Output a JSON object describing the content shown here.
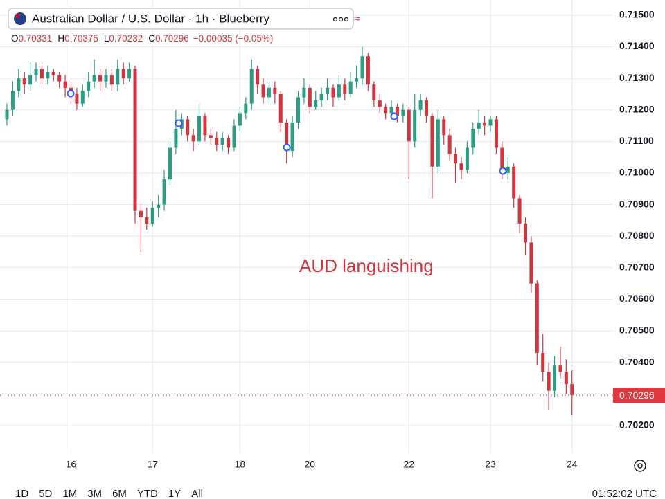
{
  "chart_data": {
    "type": "candlestick",
    "title": "Australian Dollar / U.S. Dollar · 1h · Blueberry",
    "ohlc_labels": [
      "O",
      "H",
      "L",
      "C"
    ],
    "change": "−0.00035 (−0.05%)",
    "annotation": "AUD languishing",
    "up_color": "#2a9d82",
    "down_color": "#d1353f",
    "grid": true,
    "ylim": [
      0.70112,
      0.71548
    ],
    "yticks": [
      {
        "value": 0.702,
        "label": "0.70200"
      },
      {
        "value": 0.703,
        "label": "0.70300"
      },
      {
        "value": 0.704,
        "label": "0.70400"
      },
      {
        "value": 0.705,
        "label": "0.70500"
      },
      {
        "value": 0.706,
        "label": "0.70600"
      },
      {
        "value": 0.707,
        "label": "0.70700"
      },
      {
        "value": 0.708,
        "label": "0.70800"
      },
      {
        "value": 0.709,
        "label": "0.70900"
      },
      {
        "value": 0.71,
        "label": "0.71000"
      },
      {
        "value": 0.711,
        "label": "0.71100"
      },
      {
        "value": 0.712,
        "label": "0.71200"
      },
      {
        "value": 0.713,
        "label": "0.71300"
      },
      {
        "value": 0.714,
        "label": "0.71400"
      },
      {
        "value": 0.715,
        "label": "0.71500"
      }
    ],
    "categories": [
      null,
      null,
      null,
      null,
      null,
      null,
      null,
      null,
      null,
      null,
      null,
      "16",
      null,
      null,
      null,
      null,
      null,
      null,
      null,
      null,
      null,
      null,
      null,
      null,
      null,
      "17",
      null,
      null,
      null,
      null,
      null,
      null,
      null,
      null,
      null,
      null,
      null,
      null,
      null,
      null,
      "18",
      null,
      null,
      null,
      null,
      null,
      null,
      null,
      null,
      null,
      null,
      null,
      "20",
      null,
      null,
      null,
      null,
      null,
      null,
      null,
      null,
      null,
      null,
      null,
      null,
      null,
      null,
      null,
      null,
      "22",
      null,
      null,
      null,
      null,
      null,
      null,
      null,
      null,
      null,
      null,
      null,
      null,
      null,
      "23",
      null,
      null,
      null,
      null,
      null,
      null,
      null,
      null,
      null,
      null,
      null,
      null,
      null,
      "24"
    ],
    "open": [
      0.7117,
      0.712,
      0.7126,
      0.713,
      0.7128,
      0.7131,
      0.7133,
      0.713,
      0.7132,
      0.7131,
      0.7129,
      0.7127,
      0.7125,
      0.7122,
      0.7126,
      0.7129,
      0.7131,
      0.7129,
      0.7131,
      0.7128,
      0.7133,
      0.713,
      0.7133,
      0.7088,
      0.7086,
      0.7084,
      0.7089,
      0.709,
      0.7098,
      0.7108,
      0.7114,
      0.7117,
      0.7112,
      0.711,
      0.7118,
      0.7112,
      0.7111,
      0.7109,
      0.7111,
      0.7108,
      0.7115,
      0.7119,
      0.7122,
      0.7133,
      0.7128,
      0.7124,
      0.7127,
      0.7125,
      0.7116,
      0.7107,
      0.7116,
      0.7124,
      0.7127,
      0.7121,
      0.7123,
      0.7125,
      0.7127,
      0.7124,
      0.7128,
      0.7125,
      0.7129,
      0.713,
      0.7137,
      0.7128,
      0.7123,
      0.7121,
      0.7119,
      0.7121,
      0.7118,
      0.712,
      0.711,
      0.712,
      0.7123,
      0.7118,
      0.7102,
      0.7117,
      0.7112,
      0.7106,
      0.7103,
      0.7101,
      0.7108,
      0.7114,
      0.7116,
      0.7115,
      0.7117,
      0.7108,
      0.71,
      0.7102,
      0.7092,
      0.7084,
      0.7078,
      0.7065,
      0.7043,
      0.7037,
      0.7031,
      0.7039,
      0.7037,
      0.70331
    ],
    "high": [
      0.7122,
      0.7129,
      0.7133,
      0.7132,
      0.7135,
      0.7135,
      0.7134,
      0.7134,
      0.7133,
      0.7132,
      0.7131,
      0.7129,
      0.7127,
      0.7128,
      0.7132,
      0.7136,
      0.7133,
      0.7133,
      0.7133,
      0.7136,
      0.7135,
      0.7135,
      0.7134,
      0.709,
      0.7089,
      0.7091,
      0.7093,
      0.7101,
      0.711,
      0.712,
      0.7119,
      0.7118,
      0.7114,
      0.7122,
      0.7119,
      0.7114,
      0.7113,
      0.7113,
      0.7112,
      0.7117,
      0.7121,
      0.7124,
      0.7136,
      0.7134,
      0.713,
      0.7129,
      0.7129,
      0.7126,
      0.7117,
      0.7118,
      0.7126,
      0.713,
      0.7128,
      0.7126,
      0.7127,
      0.713,
      0.7128,
      0.7131,
      0.713,
      0.7132,
      0.7134,
      0.714,
      0.7138,
      0.7129,
      0.7125,
      0.7122,
      0.7123,
      0.7122,
      0.7122,
      0.7121,
      0.7125,
      0.7125,
      0.7124,
      0.7119,
      0.712,
      0.7118,
      0.7114,
      0.7108,
      0.7105,
      0.711,
      0.7116,
      0.712,
      0.7118,
      0.7118,
      0.7118,
      0.711,
      0.7105,
      0.7103,
      0.7093,
      0.7086,
      0.708,
      0.7066,
      0.7049,
      0.704,
      0.7042,
      0.7045,
      0.7041,
      0.70375
    ],
    "low": [
      0.7115,
      0.7118,
      0.7124,
      0.7125,
      0.7126,
      0.7129,
      0.7128,
      0.7128,
      0.7129,
      0.7127,
      0.7124,
      0.7122,
      0.712,
      0.7121,
      0.7124,
      0.7127,
      0.7126,
      0.7127,
      0.7126,
      0.7126,
      0.7128,
      0.7129,
      0.7084,
      0.7075,
      0.7082,
      0.7083,
      0.7086,
      0.7088,
      0.7096,
      0.7106,
      0.7112,
      0.711,
      0.7107,
      0.7109,
      0.711,
      0.7109,
      0.7107,
      0.7107,
      0.7106,
      0.7107,
      0.7113,
      0.7117,
      0.712,
      0.7125,
      0.7122,
      0.7122,
      0.7122,
      0.7113,
      0.7103,
      0.7105,
      0.7114,
      0.7122,
      0.7119,
      0.712,
      0.7121,
      0.7123,
      0.7121,
      0.7123,
      0.7123,
      0.7124,
      0.7127,
      0.7128,
      0.7126,
      0.7121,
      0.7119,
      0.7117,
      0.7117,
      0.7116,
      0.7116,
      0.7098,
      0.7108,
      0.7118,
      0.7116,
      0.7092,
      0.71,
      0.7109,
      0.7104,
      0.7097,
      0.7098,
      0.71,
      0.7106,
      0.7112,
      0.7112,
      0.7113,
      0.7106,
      0.7098,
      0.7098,
      0.7089,
      0.7081,
      0.7074,
      0.7062,
      0.7039,
      0.7034,
      0.7025,
      0.7029,
      0.7035,
      0.703,
      0.70232
    ],
    "close": [
      0.712,
      0.7126,
      0.713,
      0.7128,
      0.7131,
      0.7133,
      0.713,
      0.7132,
      0.7131,
      0.7129,
      0.7127,
      0.7125,
      0.7122,
      0.7126,
      0.7129,
      0.7131,
      0.7129,
      0.7131,
      0.7128,
      0.7133,
      0.713,
      0.7133,
      0.7088,
      0.7086,
      0.7084,
      0.7089,
      0.709,
      0.7098,
      0.7108,
      0.7114,
      0.7117,
      0.7112,
      0.711,
      0.7118,
      0.7112,
      0.7111,
      0.7109,
      0.7111,
      0.7108,
      0.7115,
      0.7119,
      0.7122,
      0.7133,
      0.7128,
      0.7124,
      0.7127,
      0.7125,
      0.7116,
      0.7107,
      0.7116,
      0.7124,
      0.7127,
      0.7121,
      0.7123,
      0.7125,
      0.7127,
      0.7124,
      0.7128,
      0.7125,
      0.7129,
      0.713,
      0.7137,
      0.7128,
      0.7123,
      0.7121,
      0.7119,
      0.7121,
      0.7118,
      0.712,
      0.711,
      0.712,
      0.7123,
      0.7118,
      0.7102,
      0.7117,
      0.7112,
      0.7106,
      0.7103,
      0.7101,
      0.7108,
      0.7114,
      0.7116,
      0.7115,
      0.7117,
      0.7108,
      0.71,
      0.7102,
      0.7092,
      0.7084,
      0.7078,
      0.7065,
      0.7043,
      0.7037,
      0.7031,
      0.7039,
      0.7037,
      0.70331,
      0.70296
    ],
    "range_buttons": [
      "1D",
      "5D",
      "1M",
      "3M",
      "6M",
      "YTD",
      "1Y",
      "All"
    ],
    "clock": "01:52:02 UTC"
  }
}
